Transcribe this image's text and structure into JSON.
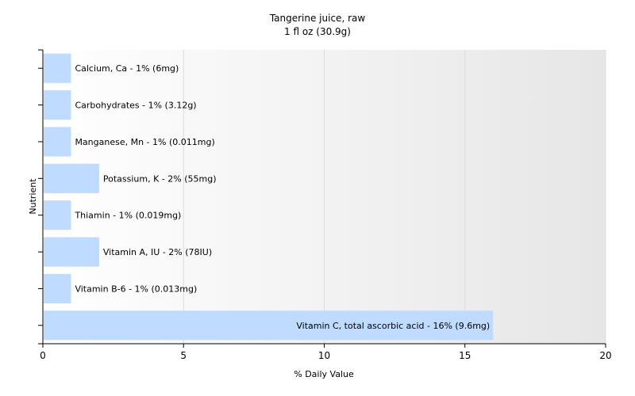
{
  "chart_data": {
    "type": "bar",
    "orientation": "horizontal",
    "title": "Tangerine juice, raw",
    "subtitle": "1 fl oz (30.9g)",
    "xlabel": "% Daily Value",
    "ylabel": "Nutrient",
    "xlim": [
      0,
      20
    ],
    "xticks": [
      0,
      5,
      10,
      15,
      20
    ],
    "grid": true,
    "colors": {
      "bar": "#bfdbff",
      "plot_gradient_start": "#ffffff",
      "plot_gradient_end": "#e6e6e6",
      "grid": "#dcdcdc",
      "axis": "#000000"
    },
    "bars": [
      {
        "category": "Calcium, Ca",
        "value": 1,
        "label": "Calcium, Ca - 1% (6mg)"
      },
      {
        "category": "Carbohydrates",
        "value": 1,
        "label": "Carbohydrates - 1% (3.12g)"
      },
      {
        "category": "Manganese, Mn",
        "value": 1,
        "label": "Manganese, Mn - 1% (0.011mg)"
      },
      {
        "category": "Potassium, K",
        "value": 2,
        "label": "Potassium, K - 2% (55mg)"
      },
      {
        "category": "Thiamin",
        "value": 1,
        "label": "Thiamin - 1% (0.019mg)"
      },
      {
        "category": "Vitamin A, IU",
        "value": 2,
        "label": "Vitamin A, IU - 2% (78IU)"
      },
      {
        "category": "Vitamin B-6",
        "value": 1,
        "label": "Vitamin B-6 - 1% (0.013mg)"
      },
      {
        "category": "Vitamin C, total ascorbic acid",
        "value": 16,
        "label": "Vitamin C, total ascorbic acid - 16% (9.6mg)"
      }
    ]
  }
}
